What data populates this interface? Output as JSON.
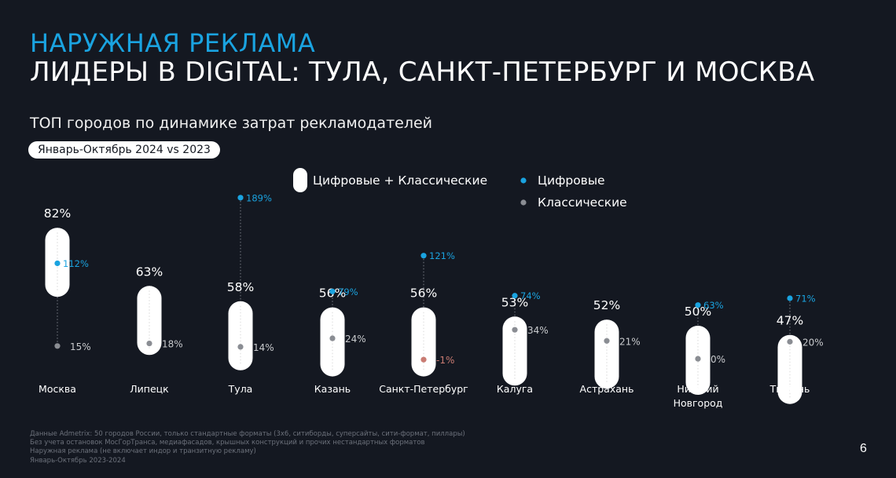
{
  "header": {
    "title_line1": "НАРУЖНАЯ РЕКЛАМА",
    "title_line2": "ЛИДЕРЫ В DIGITAL: ТУЛА, САНКТ-ПЕТЕРБУРГ И МОСКВА",
    "subtitle": "ТОП городов по динамике затрат рекламодателей",
    "period": "Январь-Октябрь 2024 vs 2023"
  },
  "colors": {
    "background": "#141821",
    "digital": "#1aa3e0",
    "classic": "#8a8d93",
    "negative": "#c97b72",
    "total_pill": "#ffffff"
  },
  "chart_data": {
    "type": "scatter",
    "title": "ТОП городов по динамике затрат рекламодателей",
    "legend": [
      {
        "name": "Цифровые + Классические",
        "marker": "pill",
        "color": "#ffffff"
      },
      {
        "name": "Цифровые",
        "marker": "dot",
        "color": "#1aa3e0"
      },
      {
        "name": "Классические",
        "marker": "dot",
        "color": "#8a8d93"
      }
    ],
    "legend_position": "top",
    "grid": false,
    "categories": [
      "Москва",
      "Липецк",
      "Тула",
      "Казань",
      "Санкт-Петербург",
      "Калуга",
      "Астрахань",
      "Нижний Новгород",
      "Тюмень"
    ],
    "series": [
      {
        "name": "Цифровые + Классические",
        "values": [
          82,
          63,
          58,
          56,
          56,
          53,
          52,
          50,
          47
        ],
        "labels": [
          "82%",
          "63%",
          "58%",
          "56%",
          "56%",
          "53%",
          "52%",
          "50%",
          "47%"
        ]
      },
      {
        "name": "Цифровые",
        "values": [
          112,
          null,
          189,
          79,
          121,
          74,
          null,
          63,
          71
        ],
        "labels": [
          "112%",
          "",
          "189%",
          "79%",
          "121%",
          "74%",
          "",
          "63%",
          "71%"
        ]
      },
      {
        "name": "Классические",
        "values": [
          15,
          18,
          14,
          24,
          -1,
          34,
          21,
          0,
          20
        ],
        "labels": [
          "15%",
          "18%",
          "14%",
          "24%",
          "-1%",
          "34%",
          "21%",
          "0%",
          "20%"
        ]
      }
    ]
  },
  "footnote": {
    "lines": [
      "Данные Admetrix: 50 городов России, только стандартные форматы (3х6, ситиборды, суперсайты, сити-формат, пиллары)",
      "Без учета остановок МосГорТранса, медиафасадов, крышных конструкций и прочих нестандартных форматов",
      "Наружная реклама (не включает индор и транзитную рекламу)",
      "Январь-Октябрь 2023-2024"
    ]
  },
  "page_number": "6"
}
